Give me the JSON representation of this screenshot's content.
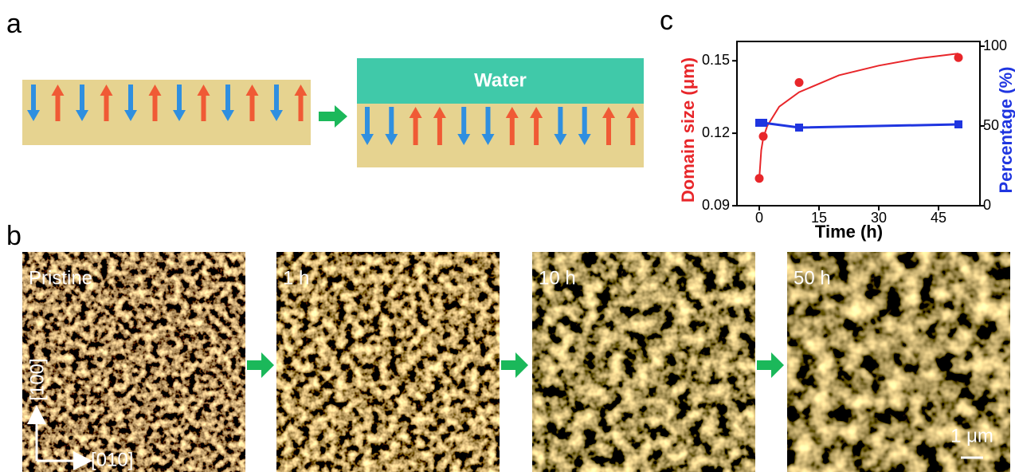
{
  "panel_labels": [
    "a",
    "b",
    "c"
  ],
  "schematic": {
    "label": "Water"
  },
  "images": [
    {
      "label": "Pristine"
    },
    {
      "label": "1 h"
    },
    {
      "label": "10 h"
    },
    {
      "label": "50 h"
    }
  ],
  "directions": {
    "vertical": "[100]",
    "horizontal": "[010]"
  },
  "scale_bar": "1 μm",
  "chart_data": {
    "type": "scatter",
    "x_label": "Time (h)",
    "y_label": "Domain size (μm)",
    "y2_label": "Percentage (%)",
    "x": [
      0,
      1,
      10,
      50
    ],
    "series": [
      {
        "color": "#e8262a",
        "marker": "circle",
        "values": [
          0.1013,
          0.1187,
          0.141,
          0.1513
        ]
      },
      {
        "color": "#1f35e0",
        "marker": "square",
        "axis": "y2",
        "values": [
          52,
          52,
          49,
          51
        ]
      }
    ],
    "fit": {
      "color": "#e8262a",
      "x": [
        0,
        0.5,
        1,
        2,
        5,
        10,
        20,
        30,
        40,
        50
      ],
      "values": [
        0.101,
        0.113,
        0.118,
        0.123,
        0.131,
        0.137,
        0.144,
        0.148,
        0.151,
        0.153
      ]
    },
    "xlim": [
      -5.6,
      55.4
    ],
    "xticks": [
      0,
      15,
      30,
      45
    ],
    "ylim": [
      0.09,
      0.158
    ],
    "yticks": [
      0.09,
      0.12,
      0.15
    ],
    "y2lim": [
      0,
      103
    ],
    "y2ticks": [
      0,
      50,
      100
    ]
  }
}
